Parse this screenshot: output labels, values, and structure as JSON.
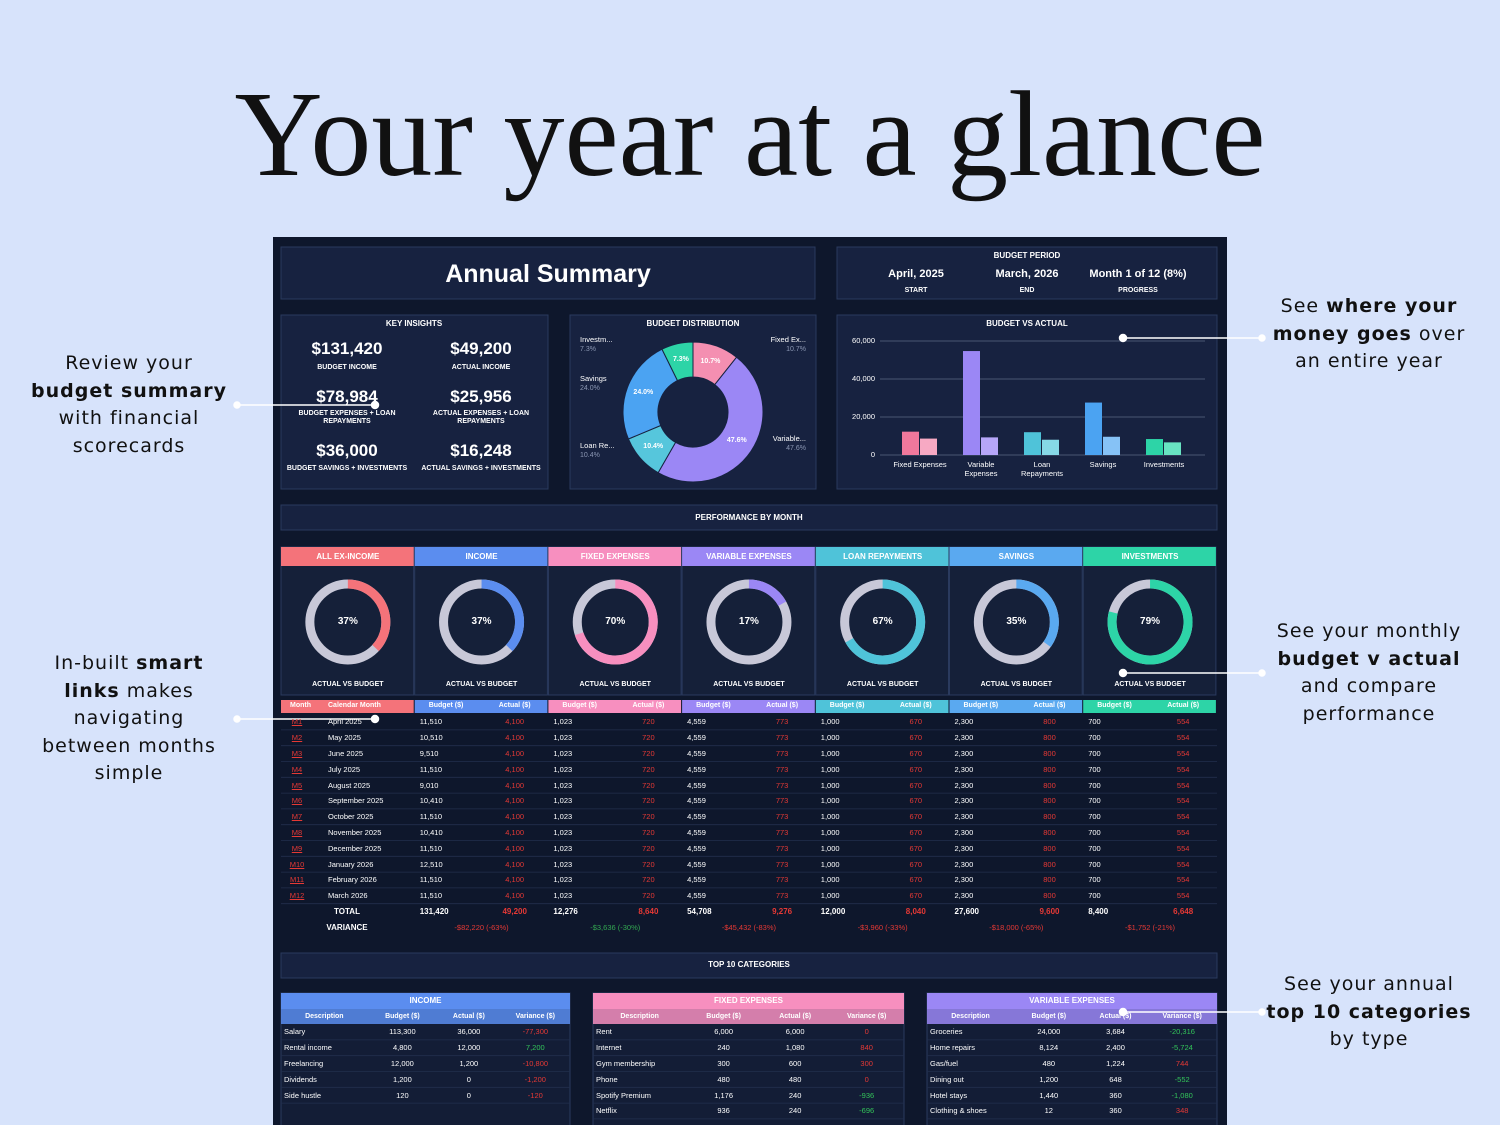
{
  "headline": "Your year at a glance",
  "annotations": [
    {
      "lines": [
        [
          {
            "text": "Review your",
            "bold": false
          }
        ],
        [
          {
            "text": "budget summary",
            "bold": true
          }
        ],
        [
          {
            "text": "with financial",
            "bold": false
          }
        ],
        [
          {
            "text": "scorecards",
            "bold": false
          }
        ]
      ]
    },
    {
      "lines": [
        [
          {
            "text": "In-built ",
            "bold": false
          },
          {
            "text": "smart",
            "bold": true
          }
        ],
        [
          {
            "text": "links",
            "bold": true
          },
          {
            "text": " makes",
            "bold": false
          }
        ],
        [
          {
            "text": "navigating",
            "bold": false
          }
        ],
        [
          {
            "text": "between months",
            "bold": false
          }
        ],
        [
          {
            "text": "simple",
            "bold": false
          }
        ]
      ]
    },
    {
      "lines": [
        [
          {
            "text": "See ",
            "bold": false
          },
          {
            "text": "where your",
            "bold": true
          }
        ],
        [
          {
            "text": "money goes",
            "bold": true
          },
          {
            "text": " over",
            "bold": false
          }
        ],
        [
          {
            "text": "an entire year",
            "bold": false
          }
        ]
      ]
    },
    {
      "lines": [
        [
          {
            "text": "See your monthly",
            "bold": false
          }
        ],
        [
          {
            "text": "budget v actual",
            "bold": true
          }
        ],
        [
          {
            "text": "and compare",
            "bold": false
          }
        ],
        [
          {
            "text": "performance",
            "bold": false
          }
        ]
      ]
    },
    {
      "lines": [
        [
          {
            "text": "See your annual",
            "bold": false
          }
        ],
        [
          {
            "text": "top 10 categories",
            "bold": true
          }
        ],
        [
          {
            "text": "by type",
            "bold": false
          }
        ]
      ]
    }
  ],
  "dashboard": {
    "title": "Annual Summary",
    "budget_period": {
      "title": "BUDGET PERIOD",
      "items": [
        {
          "value": "April, 2025",
          "label": "START"
        },
        {
          "value": "March, 2026",
          "label": "END"
        },
        {
          "value": "Month 1 of 12 (8%)",
          "label": "PROGRESS"
        }
      ]
    },
    "key_insights": {
      "title": "KEY INSIGHTS",
      "items": [
        {
          "value": "$131,420",
          "label": "BUDGET INCOME"
        },
        {
          "value": "$49,200",
          "label": "ACTUAL INCOME"
        },
        {
          "value": "$78,984",
          "label": "BUDGET EXPENSES + LOAN REPAYMENTS"
        },
        {
          "value": "$25,956",
          "label": "ACTUAL EXPENSES + LOAN REPAYMENTS"
        },
        {
          "value": "$36,000",
          "label": "BUDGET SAVINGS + INVESTMENTS"
        },
        {
          "value": "$16,248",
          "label": "ACTUAL SAVINGS + INVESTMENTS"
        }
      ]
    },
    "budget_distribution": {
      "type": "donut",
      "title": "BUDGET DISTRIBUTION",
      "categories": [
        "Fixed Ex...",
        "Variable...",
        "Loan Re...",
        "Savings",
        "Investm..."
      ],
      "values": [
        10.7,
        47.6,
        10.4,
        24.0,
        7.3
      ],
      "value_labels": [
        "10.7%",
        "47.6%",
        "10.4%",
        "24.0%",
        "7.3%"
      ],
      "colors": [
        "#f48fb1",
        "#9b87f5",
        "#56c6dc",
        "#4ba3f2",
        "#2dd4a7"
      ]
    },
    "budget_vs_actual": {
      "type": "bar",
      "title": "BUDGET VS ACTUAL",
      "categories": [
        "Fixed Expenses",
        "Variable Expenses",
        "Loan Repayments",
        "Savings",
        "Investments"
      ],
      "series": [
        {
          "values": [
            12276,
            54708,
            12000,
            27600,
            8400
          ]
        },
        {
          "values": [
            8640,
            9276,
            8040,
            9600,
            6648
          ]
        }
      ],
      "colors": [
        [
          "#f0789c",
          "#f7a9c3"
        ],
        [
          "#9b87f5",
          "#b6a6f8"
        ],
        [
          "#4fc3d9",
          "#86d8e6"
        ],
        [
          "#4ba3f2",
          "#86c2f6"
        ],
        [
          "#2dd4a7",
          "#68e4c2"
        ]
      ],
      "ylim": [
        0,
        60000
      ],
      "yticks": [
        0,
        {
          "value": 20000,
          "label": "20,000"
        },
        {
          "value": 40000,
          "label": "40,000"
        },
        {
          "value": 60000,
          "label": "60,000"
        }
      ],
      "grid": true
    },
    "performance": {
      "title": "PERFORMANCE BY MONTH",
      "ring_caption": "ACTUAL VS BUDGET",
      "groups": [
        "ALL EX-INCOME",
        "INCOME",
        "FIXED EXPENSES",
        "VARIABLE EXPENSES",
        "LOAN REPAYMENTS",
        "SAVINGS",
        "INVESTMENTS"
      ],
      "colors": [
        "#f4737a",
        "#5b8def",
        "#f78fbf",
        "#9b87f5",
        "#4fc3d9",
        "#5aa9f0",
        "#2dd4a7"
      ],
      "values": [
        37,
        37,
        70,
        17,
        67,
        35,
        79
      ],
      "value_labels": [
        "37%",
        "37%",
        "70%",
        "17%",
        "67%",
        "35%",
        "79%"
      ],
      "headers": [
        "Month",
        "Calendar Month",
        "Budget ($)",
        "Actual ($)",
        "Budget ($)",
        "Actual ($)",
        "Budget ($)",
        "Actual ($)",
        "Budget ($)",
        "Actual ($)",
        "Budget ($)",
        "Actual ($)",
        "Budget ($)",
        "Actual ($)"
      ],
      "rows": [
        {
          "link": "M1",
          "month": "April 2025",
          "cells": [
            "11,510",
            "4,100",
            "1,023",
            "720",
            "4,559",
            "773",
            "1,000",
            "670",
            "2,300",
            "800",
            "700",
            "554"
          ]
        },
        {
          "link": "M2",
          "month": "May 2025",
          "cells": [
            "10,510",
            "4,100",
            "1,023",
            "720",
            "4,559",
            "773",
            "1,000",
            "670",
            "2,300",
            "800",
            "700",
            "554"
          ]
        },
        {
          "link": "M3",
          "month": "June 2025",
          "cells": [
            "9,510",
            "4,100",
            "1,023",
            "720",
            "4,559",
            "773",
            "1,000",
            "670",
            "2,300",
            "800",
            "700",
            "554"
          ]
        },
        {
          "link": "M4",
          "month": "July 2025",
          "cells": [
            "11,510",
            "4,100",
            "1,023",
            "720",
            "4,559",
            "773",
            "1,000",
            "670",
            "2,300",
            "800",
            "700",
            "554"
          ]
        },
        {
          "link": "M5",
          "month": "August 2025",
          "cells": [
            "9,010",
            "4,100",
            "1,023",
            "720",
            "4,559",
            "773",
            "1,000",
            "670",
            "2,300",
            "800",
            "700",
            "554"
          ]
        },
        {
          "link": "M6",
          "month": "September 2025",
          "cells": [
            "10,410",
            "4,100",
            "1,023",
            "720",
            "4,559",
            "773",
            "1,000",
            "670",
            "2,300",
            "800",
            "700",
            "554"
          ]
        },
        {
          "link": "M7",
          "month": "October 2025",
          "cells": [
            "11,510",
            "4,100",
            "1,023",
            "720",
            "4,559",
            "773",
            "1,000",
            "670",
            "2,300",
            "800",
            "700",
            "554"
          ]
        },
        {
          "link": "M8",
          "month": "November 2025",
          "cells": [
            "10,410",
            "4,100",
            "1,023",
            "720",
            "4,559",
            "773",
            "1,000",
            "670",
            "2,300",
            "800",
            "700",
            "554"
          ]
        },
        {
          "link": "M9",
          "month": "December 2025",
          "cells": [
            "11,510",
            "4,100",
            "1,023",
            "720",
            "4,559",
            "773",
            "1,000",
            "670",
            "2,300",
            "800",
            "700",
            "554"
          ]
        },
        {
          "link": "M10",
          "month": "January 2026",
          "cells": [
            "12,510",
            "4,100",
            "1,023",
            "720",
            "4,559",
            "773",
            "1,000",
            "670",
            "2,300",
            "800",
            "700",
            "554"
          ]
        },
        {
          "link": "M11",
          "month": "February 2026",
          "cells": [
            "11,510",
            "4,100",
            "1,023",
            "720",
            "4,559",
            "773",
            "1,000",
            "670",
            "2,300",
            "800",
            "700",
            "554"
          ]
        },
        {
          "link": "M12",
          "month": "March 2026",
          "cells": [
            "11,510",
            "4,100",
            "1,023",
            "720",
            "4,559",
            "773",
            "1,000",
            "670",
            "2,300",
            "800",
            "700",
            "554"
          ]
        }
      ],
      "total": {
        "label": "TOTAL",
        "cells": [
          "131,420",
          "49,200",
          "12,276",
          "8,640",
          "54,708",
          "9,276",
          "12,000",
          "8,040",
          "27,600",
          "9,600",
          "8,400",
          "6,648"
        ]
      },
      "variance": {
        "label": "VARIANCE",
        "cells": [
          "-$82,220 (-63%)",
          "-$3,636 (-30%)",
          "-$45,432 (-83%)",
          "-$3,960 (-33%)",
          "-$18,000 (-65%)",
          "-$1,752 (-21%)"
        ]
      }
    },
    "top10": {
      "title": "TOP 10 CATEGORIES",
      "tables": [
        {
          "title": "INCOME",
          "color": "#5b8def",
          "headers": [
            "Description",
            "Budget ($)",
            "Actual ($)",
            "Variance ($)"
          ],
          "rows": [
            [
              "Salary",
              "113,300",
              "36,000",
              "-77,300"
            ],
            [
              "Rental income",
              "4,800",
              "12,000",
              "7,200"
            ],
            [
              "Freelancing",
              "12,000",
              "1,200",
              "-10,800"
            ],
            [
              "Dividends",
              "1,200",
              "0",
              "-1,200"
            ],
            [
              "Side hustle",
              "120",
              "0",
              "-120"
            ]
          ]
        },
        {
          "title": "FIXED EXPENSES",
          "color": "#f78fbf",
          "headers": [
            "Description",
            "Budget ($)",
            "Actual ($)",
            "Variance ($)"
          ],
          "rows": [
            [
              "Rent",
              "6,000",
              "6,000",
              "0"
            ],
            [
              "Internet",
              "240",
              "1,080",
              "840"
            ],
            [
              "Gym membership",
              "300",
              "600",
              "300"
            ],
            [
              "Phone",
              "480",
              "480",
              "0"
            ],
            [
              "Spotify Premium",
              "1,176",
              "240",
              "-936"
            ],
            [
              "Netflix",
              "936",
              "240",
              "-696"
            ]
          ]
        },
        {
          "title": "VARIABLE EXPENSES",
          "color": "#9b87f5",
          "headers": [
            "Description",
            "Budget ($)",
            "Actual ($)",
            "Variance ($)"
          ],
          "rows": [
            [
              "Groceries",
              "24,000",
              "3,684",
              "-20,316"
            ],
            [
              "Home repairs",
              "8,124",
              "2,400",
              "-5,724"
            ],
            [
              "Gas/fuel",
              "480",
              "1,224",
              "744"
            ],
            [
              "Dining out",
              "1,200",
              "648",
              "-552"
            ],
            [
              "Hotel stays",
              "1,440",
              "360",
              "-1,080"
            ],
            [
              "Clothing & shoes",
              "12",
              "360",
              "348"
            ]
          ]
        }
      ]
    }
  }
}
